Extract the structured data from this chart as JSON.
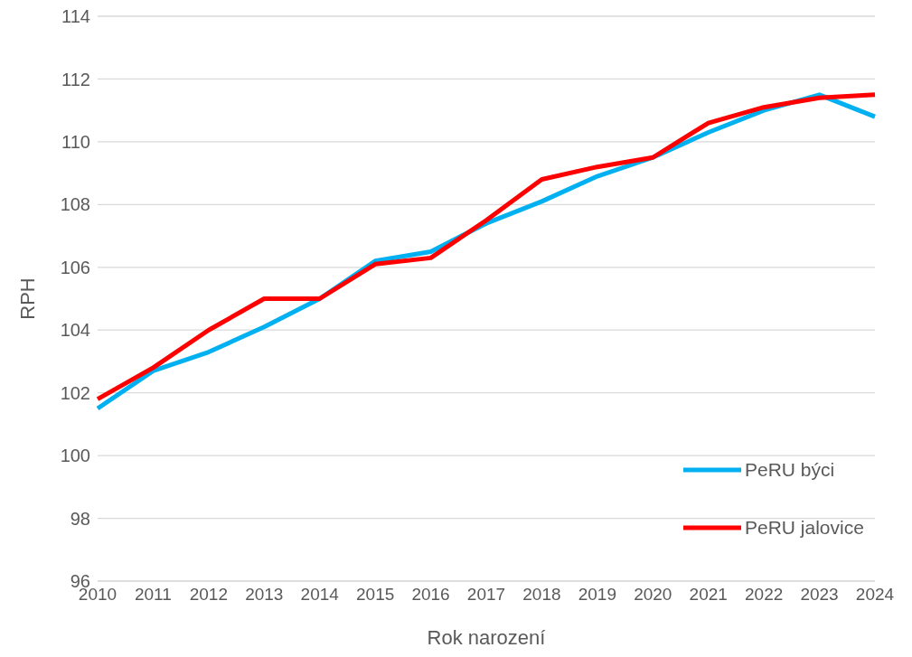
{
  "chart_data": {
    "type": "line",
    "xlabel": "Rok narození",
    "ylabel": "RPH",
    "categories": [
      "2010",
      "2011",
      "2012",
      "2013",
      "2014",
      "2015",
      "2016",
      "2017",
      "2018",
      "2019",
      "2020",
      "2021",
      "2022",
      "2023",
      "2024"
    ],
    "series": [
      {
        "name": "PeRU býci",
        "color": "#00b0f0",
        "values": [
          101.5,
          102.7,
          103.3,
          104.1,
          105.0,
          106.2,
          106.5,
          107.4,
          108.1,
          108.9,
          109.5,
          110.3,
          111.0,
          111.5,
          110.8
        ]
      },
      {
        "name": "PeRU jalovice",
        "color": "#ff0000",
        "values": [
          101.8,
          102.8,
          104.0,
          105.0,
          105.0,
          106.1,
          106.3,
          107.5,
          108.8,
          109.2,
          109.5,
          110.6,
          111.1,
          111.4,
          111.5
        ]
      }
    ],
    "ylim": [
      96,
      114
    ],
    "yticks": [
      96,
      98,
      100,
      102,
      104,
      106,
      108,
      110,
      112,
      114
    ],
    "grid": "y",
    "legend": "bottom right",
    "marker": "none",
    "line_style": "solid"
  }
}
